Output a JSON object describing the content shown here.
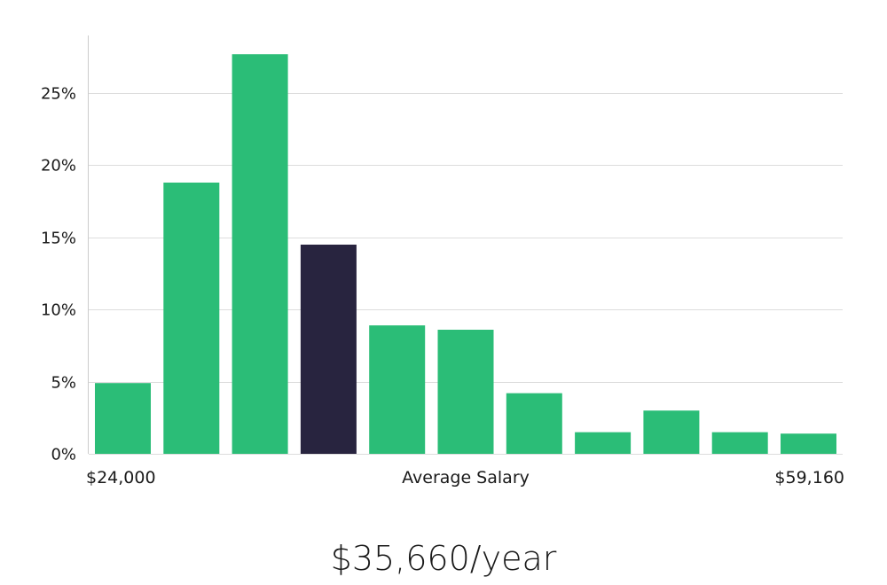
{
  "chart_data": {
    "type": "bar",
    "title": "",
    "ylabel": "",
    "xlabel": "Average Salary",
    "x_min_label": "$24,000",
    "x_max_label": "$59,160",
    "ylim": [
      0,
      29
    ],
    "yticks": [
      0,
      5,
      10,
      15,
      20,
      25
    ],
    "ytick_labels": [
      "0%",
      "5%",
      "10%",
      "15%",
      "20%",
      "25%"
    ],
    "values": [
      4.9,
      18.8,
      27.7,
      14.5,
      8.9,
      8.6,
      4.2,
      1.5,
      3.0,
      1.5,
      1.4
    ],
    "highlight_index": 3,
    "colors": {
      "bar": "#2bbd77",
      "highlight": "#28243f",
      "grid": "#dddddd",
      "axis": "#cccccc"
    }
  },
  "salary_text": "$35,660/year"
}
